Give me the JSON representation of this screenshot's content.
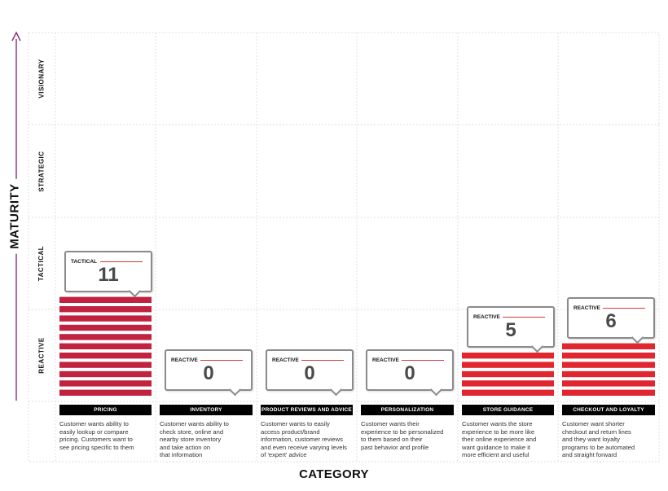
{
  "chart_data": {
    "type": "bar",
    "xlabel": "CATEGORY",
    "ylabel": "MATURITY",
    "maturity_levels": [
      "REACTIVE",
      "TACTICAL",
      "STRATEGIC",
      "VISIONARY"
    ],
    "categories": [
      {
        "name": "PRICING",
        "value": 11,
        "tag": "TACTICAL",
        "description": "Customer wants ability to\neasily lookup or compare\npricing. Customers want to\nsee pricing specific to them"
      },
      {
        "name": "INVENTORY",
        "value": 0,
        "tag": "REACTIVE",
        "description": "Customer wants ability to\ncheck store, online and\nnearby store inventory\nand take action on\nthat information"
      },
      {
        "name": "PRODUCT REVIEWS AND ADVICE",
        "value": 0,
        "tag": "REACTIVE",
        "description": "Customer wants to easily\naccess product/brand\ninformation, customer reviews\nand even receive varying levels\nof 'expert' advice"
      },
      {
        "name": "PERSONALIZATION",
        "value": 0,
        "tag": "REACTIVE",
        "description": "Customer wants their\nexperience to be personalized\nto them based on their\npast behavior and profile"
      },
      {
        "name": "STORE GUIDANCE",
        "value": 5,
        "tag": "REACTIVE",
        "description": "Customer wants the store\nexperience to be more like\ntheir online experience and\nwant guidance to make it\nmore efficient and useful"
      },
      {
        "name": "CHECKOUT AND LOYALTY",
        "value": 6,
        "tag": "REACTIVE",
        "description": "Customer want shorter\ncheckout and return lines\nand they want loyalty\nprograms to be automated\nand straight forward"
      }
    ],
    "grid": true
  },
  "colors": {
    "bar_reactive": "#e0262f",
    "bar_tactical": "#c0223f",
    "grid": "#d9d9d9",
    "axis_arrow": "#8a2a7a",
    "callout_border": "#8a8a8a",
    "category_bar": "#000000"
  }
}
